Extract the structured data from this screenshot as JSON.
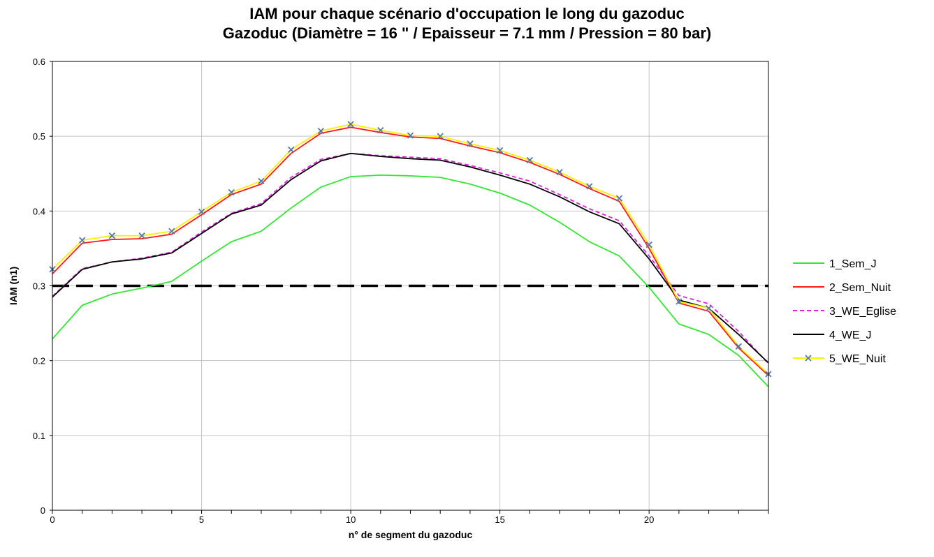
{
  "chart_data": {
    "type": "line",
    "title": "IAM pour chaque scénario d'occupation le long du gazoduc",
    "subtitle": "Gazoduc (Diamètre = 16 \" / Epaisseur = 7.1 mm / Pression = 80 bar)",
    "xlabel": "n° de segment du gazoduc",
    "ylabel": "IAM (n1)",
    "xlim": [
      0,
      24
    ],
    "ylim": [
      0,
      0.6
    ],
    "x_ticks": [
      0,
      5,
      10,
      15,
      20
    ],
    "y_ticks": [
      0,
      0.1,
      0.2,
      0.3,
      0.4,
      0.5,
      0.6
    ],
    "x_tick_labels": [
      "0",
      "5",
      "10",
      "15",
      "20"
    ],
    "y_tick_labels": [
      "0",
      "0.1",
      "0.2",
      "0.3",
      "0.4",
      "0.5",
      "0.6"
    ],
    "grid": true,
    "legend_position": "right",
    "x": [
      0,
      1,
      2,
      3,
      4,
      5,
      6,
      7,
      8,
      9,
      10,
      11,
      12,
      13,
      14,
      15,
      16,
      17,
      18,
      19,
      20,
      21,
      22,
      23,
      24
    ],
    "series": [
      {
        "name": "1_Sem_J",
        "color": "#33e633",
        "dash": "solid",
        "marker": "none",
        "values": [
          0.229,
          0.274,
          0.289,
          0.297,
          0.306,
          0.333,
          0.359,
          0.373,
          0.404,
          0.432,
          0.446,
          0.448,
          0.447,
          0.445,
          0.436,
          0.424,
          0.408,
          0.385,
          0.359,
          0.34,
          0.298,
          0.249,
          0.235,
          0.207,
          0.165
        ]
      },
      {
        "name": "2_Sem_Nuit",
        "color": "#ff1a1a",
        "dash": "solid",
        "marker": "none",
        "values": [
          0.316,
          0.357,
          0.362,
          0.363,
          0.369,
          0.395,
          0.422,
          0.436,
          0.477,
          0.504,
          0.512,
          0.505,
          0.499,
          0.497,
          0.487,
          0.478,
          0.465,
          0.449,
          0.43,
          0.413,
          0.35,
          0.277,
          0.266,
          0.217,
          0.18
        ]
      },
      {
        "name": "3_WE_Eglise",
        "color": "#dd22dd",
        "dash": "dashed",
        "marker": "none",
        "values": [
          0.286,
          0.323,
          0.332,
          0.337,
          0.345,
          0.372,
          0.397,
          0.41,
          0.445,
          0.469,
          0.477,
          0.474,
          0.472,
          0.47,
          0.461,
          0.451,
          0.44,
          0.422,
          0.403,
          0.387,
          0.34,
          0.287,
          0.276,
          0.239,
          0.196
        ]
      },
      {
        "name": "4_WE_J",
        "color": "#000000",
        "dash": "solid",
        "marker": "none",
        "values": [
          0.285,
          0.322,
          0.332,
          0.336,
          0.344,
          0.37,
          0.396,
          0.408,
          0.442,
          0.467,
          0.477,
          0.473,
          0.47,
          0.468,
          0.459,
          0.448,
          0.436,
          0.419,
          0.399,
          0.383,
          0.336,
          0.281,
          0.27,
          0.235,
          0.197
        ]
      },
      {
        "name": "5_WE_Nuit",
        "color": "#ffee00",
        "dash": "solid",
        "marker": "x",
        "marker_color": "#5577aa",
        "values": [
          0.322,
          0.361,
          0.367,
          0.367,
          0.373,
          0.399,
          0.425,
          0.44,
          0.482,
          0.507,
          0.516,
          0.508,
          0.501,
          0.5,
          0.49,
          0.481,
          0.468,
          0.452,
          0.433,
          0.417,
          0.355,
          0.279,
          0.27,
          0.219,
          0.182
        ]
      }
    ],
    "reference_line": {
      "y": 0.3,
      "color": "#000000",
      "dash": "long-dash"
    }
  }
}
